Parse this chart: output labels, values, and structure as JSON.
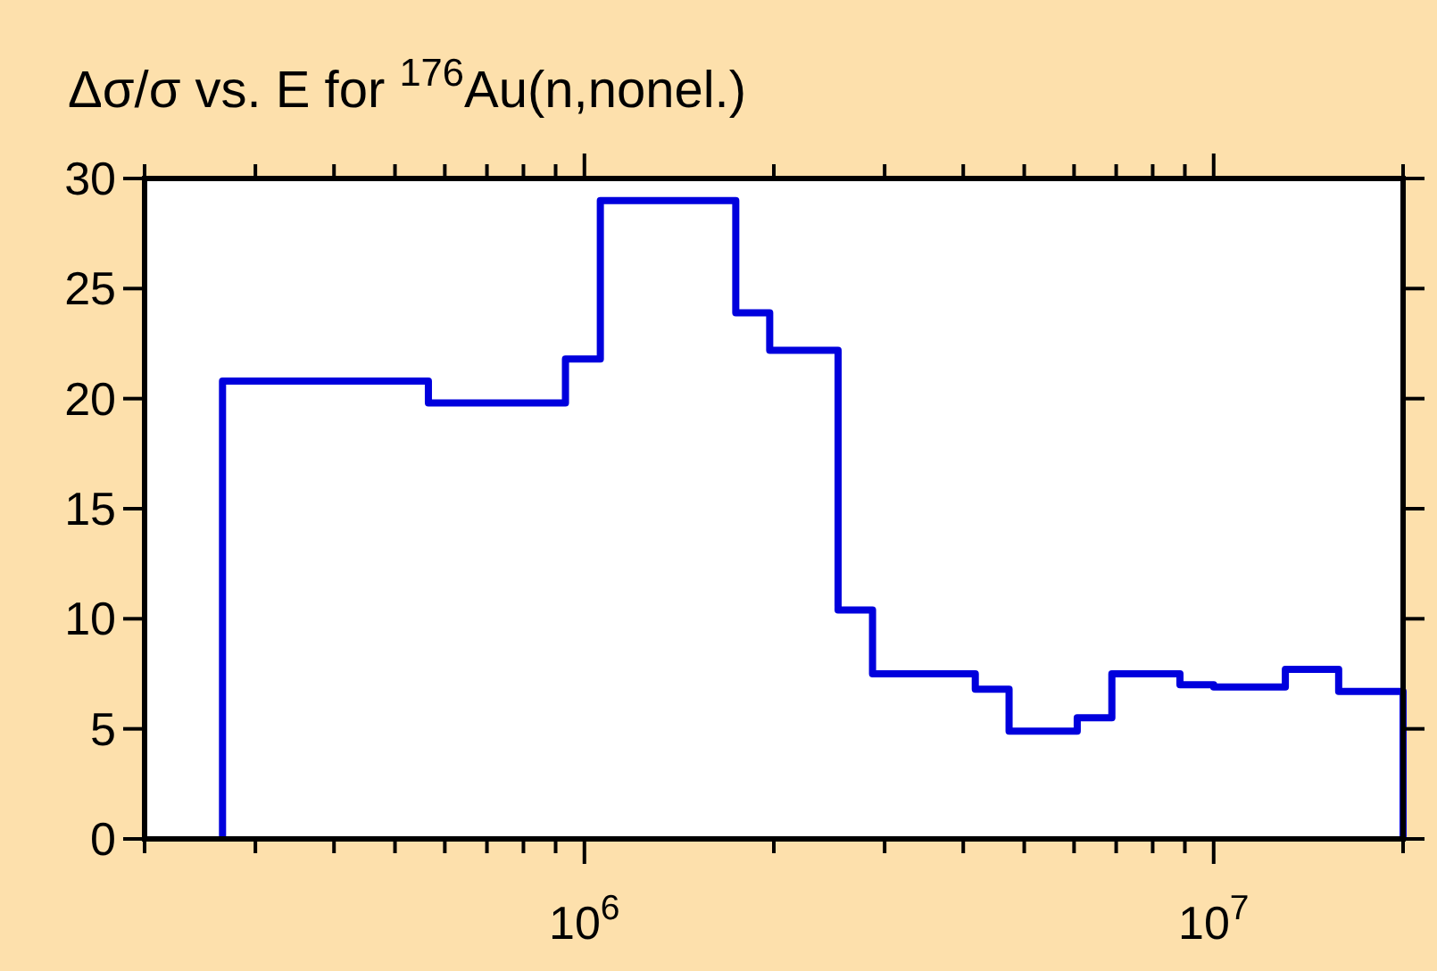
{
  "chart_data": {
    "type": "histogram",
    "title": "Δσ/σ vs. E for $^{176}$Au(n,nonel.)",
    "log": "x",
    "color": "#0000dd",
    "bins": [
      266000.0,
      565000.0,
      933000.0,
      1060000.0,
      1740000.0,
      1970000.0,
      2530000.0,
      2870000.0,
      4180000.0,
      4730000.0,
      6070000.0,
      6890000.0,
      8840000.0,
      10000000.0,
      13000000.0,
      15800000.0,
      20000000.0
    ],
    "values": [
      20.8,
      19.8,
      21.8,
      29,
      23.9,
      22.2,
      10.4,
      7.5,
      6.8,
      4.9,
      5.5,
      7.5,
      7.0,
      6.9,
      7.7,
      6.7
    ],
    "xlim": [
      200000.0,
      20000000.0
    ],
    "xticks": [
      {
        "value": 200000.0,
        "label": null
      },
      {
        "value": 300000.0,
        "label": null
      },
      {
        "value": 400000.0,
        "label": null
      },
      {
        "value": 500000.0,
        "label": null
      },
      {
        "value": 600000.0,
        "label": null
      },
      {
        "value": 700000.0,
        "label": null
      },
      {
        "value": 800000.0,
        "label": null
      },
      {
        "value": 900000.0,
        "label": null
      },
      {
        "value": 1000000.0,
        "label": "10$^{6}$"
      },
      {
        "value": 2000000.0,
        "label": null
      },
      {
        "value": 3000000.0,
        "label": null
      },
      {
        "value": 4000000.0,
        "label": null
      },
      {
        "value": 5000000.0,
        "label": null
      },
      {
        "value": 6000000.0,
        "label": null
      },
      {
        "value": 7000000.0,
        "label": null
      },
      {
        "value": 8000000.0,
        "label": null
      },
      {
        "value": 9000000.0,
        "label": null
      },
      {
        "value": 10000000.0,
        "label": "10$^{7}$"
      },
      {
        "value": 20000000.0,
        "label": null
      }
    ],
    "ylim": [
      0,
      30
    ],
    "yticks": [
      0,
      5,
      10,
      15,
      20,
      25,
      30
    ],
    "grid": false
  }
}
